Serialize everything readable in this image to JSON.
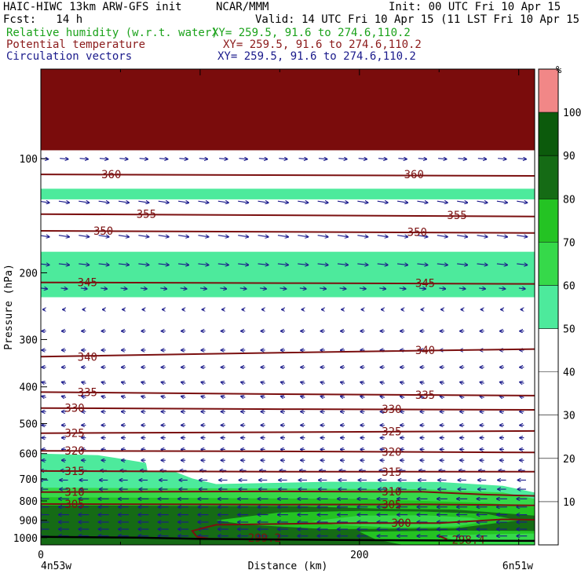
{
  "header": {
    "model": "HAIC-HIWC 13km ARW-GFS init",
    "org": "NCAR/MMM",
    "init": "Init: 00 UTC Fri 10 Apr 15",
    "fcst": "Fcst:   14 h",
    "valid": "Valid: 14 UTC Fri 10 Apr 15 (11 LST Fri 10 Apr 15)",
    "field1": "Relative humidity (w.r.t. water)",
    "field1_xy": "XY= 259.5, 91.6 to 274.6,110.2",
    "field2": "Potential temperature",
    "field2_xy": "XY= 259.5, 91.6 to 274.6,110.2",
    "field3": "Circulation vectors",
    "field3_xy": "XY= 259.5, 91.6 to 274.6,110.2"
  },
  "colors": {
    "header_black": "#000000",
    "header_green": "#1aa21a",
    "header_red": "#8b1a1a",
    "header_blue": "#1a1a8b",
    "theta_contour": "#7b1010",
    "vectors": "#1a1a8b"
  },
  "chart_data": {
    "type": "heatmap",
    "ylabel": "Pressure (hPa)",
    "xlabel": "Distance (km)",
    "left_label": "4n53w",
    "right_label": "6n51w",
    "x_ticks": [
      "0",
      "200"
    ],
    "xlim": [
      0,
      310
    ],
    "ylim": [
      1045,
      58
    ],
    "y_scale": "log",
    "y_ticks": [
      "100",
      "200",
      "300",
      "400",
      "500",
      "600",
      "700",
      "800",
      "900",
      "1000"
    ],
    "colorbar": {
      "unit": "%",
      "levels": [
        "10",
        "20",
        "30",
        "40",
        "50",
        "60",
        "70",
        "80",
        "90",
        "100"
      ],
      "colors": [
        "#ffffff",
        "#ffffff",
        "#ffffff",
        "#ffffff",
        "#ffffff",
        "#4dea9c",
        "#36d94a",
        "#24c323",
        "#156b15",
        "#0c5a0c",
        "#f18787"
      ]
    },
    "rh_bands": [
      {
        "pmin": 58,
        "pmax": 95,
        "rh": 101,
        "color": "#7a0c0c"
      },
      {
        "pmin": 120,
        "pmax": 128,
        "rh": 55,
        "color": "#4dea9c"
      },
      {
        "pmin": 176,
        "pmax": 232,
        "rh": 55,
        "color": "#4dea9c"
      }
    ],
    "rh_regions": [
      {
        "rh": 55,
        "color": "#4dea9c",
        "points": [
          [
            0,
            600
          ],
          [
            36,
            606
          ],
          [
            47,
            616
          ],
          [
            66,
            635
          ],
          [
            67,
            667
          ],
          [
            83,
            667
          ],
          [
            95,
            698
          ],
          [
            110,
            722
          ],
          [
            180,
            712
          ],
          [
            250,
            713
          ],
          [
            290,
            730
          ],
          [
            310,
            760
          ],
          [
            310,
            1050
          ],
          [
            0,
            1050
          ]
        ]
      },
      {
        "rh": 65,
        "color": "#36d94a",
        "points": [
          [
            0,
            738
          ],
          [
            60,
            740
          ],
          [
            150,
            742
          ],
          [
            240,
            745
          ],
          [
            290,
            760
          ],
          [
            310,
            790
          ],
          [
            310,
            1050
          ],
          [
            0,
            1050
          ]
        ]
      },
      {
        "rh": 75,
        "color": "#24c323",
        "points": [
          [
            0,
            782
          ],
          [
            100,
            786
          ],
          [
            200,
            790
          ],
          [
            280,
            810
          ],
          [
            310,
            830
          ],
          [
            310,
            1050
          ],
          [
            0,
            1050
          ]
        ]
      },
      {
        "rh": 85,
        "color": "#156b15",
        "points": [
          [
            0,
            822
          ],
          [
            80,
            824
          ],
          [
            160,
            826
          ],
          [
            220,
            840
          ],
          [
            260,
            843
          ],
          [
            290,
            862
          ],
          [
            310,
            875
          ],
          [
            310,
            1050
          ],
          [
            0,
            1050
          ]
        ]
      },
      {
        "rh": 75,
        "color": "#24c323",
        "points": [
          [
            110,
            900
          ],
          [
            150,
            858
          ],
          [
            200,
            850
          ],
          [
            240,
            853
          ],
          [
            280,
            866
          ],
          [
            300,
            900
          ],
          [
            260,
            945
          ],
          [
            180,
            950
          ],
          [
            130,
            925
          ]
        ]
      },
      {
        "rh": 65,
        "color": "#36d94a",
        "points": [
          [
            170,
            905
          ],
          [
            200,
            875
          ],
          [
            240,
            873
          ],
          [
            270,
            885
          ],
          [
            280,
            905
          ],
          [
            260,
            935
          ],
          [
            220,
            940
          ],
          [
            185,
            925
          ]
        ]
      },
      {
        "rh": 75,
        "color": "#24c323",
        "points": [
          [
            200,
            965
          ],
          [
            260,
            958
          ],
          [
            310,
            960
          ],
          [
            310,
            1050
          ],
          [
            230,
            1050
          ],
          [
            210,
            1010
          ]
        ]
      },
      {
        "rh": 65,
        "color": "#36d94a",
        "points": [
          [
            250,
            985
          ],
          [
            310,
            975
          ],
          [
            310,
            1050
          ],
          [
            270,
            1050
          ]
        ]
      }
    ],
    "theta_contours": [
      {
        "value": "360",
        "points": [
          [
            0,
            110
          ],
          [
            310,
            111
          ]
        ],
        "labels": [
          [
            38,
            110
          ],
          [
            228,
            110
          ]
        ]
      },
      {
        "value": "355",
        "points": [
          [
            0,
            140
          ],
          [
            310,
            142
          ]
        ],
        "labels": [
          [
            60,
            140
          ],
          [
            255,
            141
          ]
        ]
      },
      {
        "value": "350",
        "points": [
          [
            0,
            155
          ],
          [
            310,
            157
          ]
        ],
        "labels": [
          [
            33,
            155
          ],
          [
            230,
            156
          ]
        ]
      },
      {
        "value": "345",
        "points": [
          [
            0,
            212
          ],
          [
            155,
            213
          ],
          [
            310,
            214
          ]
        ],
        "labels": [
          [
            23,
            212
          ],
          [
            235,
            213
          ]
        ]
      },
      {
        "value": "340",
        "points": [
          [
            0,
            333
          ],
          [
            150,
            325
          ],
          [
            310,
            318
          ]
        ],
        "labels": [
          [
            23,
            333
          ],
          [
            235,
            320
          ]
        ]
      },
      {
        "value": "335",
        "points": [
          [
            0,
            413
          ],
          [
            150,
            418
          ],
          [
            310,
            422
          ]
        ],
        "labels": [
          [
            23,
            413
          ],
          [
            235,
            420
          ]
        ]
      },
      {
        "value": "330",
        "points": [
          [
            0,
            455
          ],
          [
            150,
            458
          ],
          [
            310,
            460
          ]
        ],
        "labels": [
          [
            15,
            455
          ],
          [
            214,
            458
          ]
        ]
      },
      {
        "value": "325",
        "points": [
          [
            0,
            530
          ],
          [
            150,
            527
          ],
          [
            310,
            523
          ]
        ],
        "labels": [
          [
            15,
            530
          ],
          [
            214,
            525
          ]
        ]
      },
      {
        "value": "320",
        "points": [
          [
            0,
            590
          ],
          [
            150,
            592
          ],
          [
            310,
            596
          ]
        ],
        "labels": [
          [
            15,
            590
          ],
          [
            214,
            594
          ]
        ]
      },
      {
        "value": "315",
        "points": [
          [
            0,
            667
          ],
          [
            150,
            670
          ],
          [
            310,
            670
          ]
        ],
        "labels": [
          [
            15,
            667
          ],
          [
            214,
            670
          ]
        ]
      },
      {
        "value": "310",
        "points": [
          [
            0,
            758
          ],
          [
            150,
            755
          ],
          [
            240,
            757
          ],
          [
            280,
            770
          ],
          [
            310,
            776
          ]
        ],
        "labels": [
          [
            15,
            758
          ],
          [
            214,
            755
          ]
        ]
      },
      {
        "value": "305",
        "points": [
          [
            0,
            815
          ],
          [
            150,
            818
          ],
          [
            240,
            817
          ],
          [
            310,
            822
          ]
        ],
        "labels": [
          [
            15,
            815
          ],
          [
            214,
            817
          ]
        ]
      },
      {
        "value": "300",
        "points": [
          [
            98,
            995
          ],
          [
            95,
            960
          ],
          [
            110,
            925
          ],
          [
            170,
            918
          ],
          [
            200,
            915
          ],
          [
            250,
            915
          ],
          [
            290,
            895
          ],
          [
            310,
            897
          ]
        ],
        "labels": [
          [
            220,
            915
          ]
        ]
      },
      {
        "value": "299.2",
        "points": [
          [
            98,
            995
          ],
          [
            105,
            1005
          ]
        ],
        "labels": [
          [
            130,
            1000
          ]
        ]
      },
      {
        "value": "298.4",
        "points": [
          [
            250,
            990
          ],
          [
            255,
            1010
          ]
        ],
        "labels": [
          [
            258,
            1013
          ]
        ]
      }
    ],
    "surface": [
      [
        0,
        995
      ],
      [
        60,
        1000
      ],
      [
        100,
        1008
      ],
      [
        200,
        1015
      ],
      [
        310,
        1020
      ]
    ],
    "vector_rows": [
      {
        "p": 100,
        "u": 4,
        "w": -0.2
      },
      {
        "p": 130,
        "u": 5,
        "w": -0.4
      },
      {
        "p": 160,
        "u": 5,
        "w": -0.4
      },
      {
        "p": 190,
        "u": 5,
        "w": -0.3
      },
      {
        "p": 220,
        "u": 3,
        "w": -0.2
      },
      {
        "p": 250,
        "u": -1,
        "w": 0
      },
      {
        "p": 285,
        "u": -2,
        "w": 0
      },
      {
        "p": 320,
        "u": -2,
        "w": 0
      },
      {
        "p": 355,
        "u": -2,
        "w": 0
      },
      {
        "p": 390,
        "u": -2,
        "w": 0.3
      },
      {
        "p": 425,
        "u": -2,
        "w": 0.3
      },
      {
        "p": 465,
        "u": -2,
        "w": 0
      },
      {
        "p": 505,
        "u": -2,
        "w": 0
      },
      {
        "p": 545,
        "u": -2,
        "w": 0
      },
      {
        "p": 585,
        "u": -2,
        "w": 0
      },
      {
        "p": 625,
        "u": -2,
        "w": 0
      },
      {
        "p": 665,
        "u": -3,
        "w": 0
      },
      {
        "p": 705,
        "u": -4,
        "w": 0
      },
      {
        "p": 745,
        "u": -4,
        "w": 0
      },
      {
        "p": 790,
        "u": -5,
        "w": 0
      },
      {
        "p": 830,
        "u": -5,
        "w": 0
      },
      {
        "p": 870,
        "u": -5,
        "w": 0
      },
      {
        "p": 910,
        "u": -5,
        "w": 0
      },
      {
        "p": 950,
        "u": -5,
        "w": 0
      },
      {
        "p": 990,
        "u": -5,
        "w": 0
      }
    ],
    "vector_x_spacing_km": 12.5
  }
}
